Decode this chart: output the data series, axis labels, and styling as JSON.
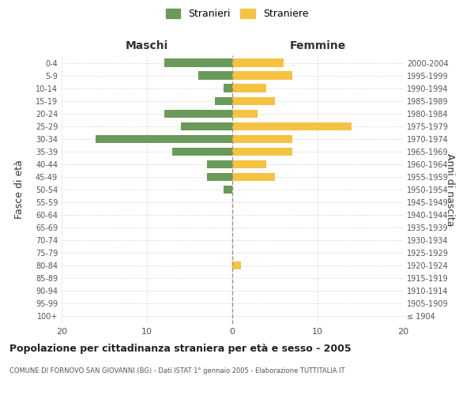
{
  "age_groups": [
    "100+",
    "95-99",
    "90-94",
    "85-89",
    "80-84",
    "75-79",
    "70-74",
    "65-69",
    "60-64",
    "55-59",
    "50-54",
    "45-49",
    "40-44",
    "35-39",
    "30-34",
    "25-29",
    "20-24",
    "15-19",
    "10-14",
    "5-9",
    "0-4"
  ],
  "birth_years": [
    "≤ 1904",
    "1905-1909",
    "1910-1914",
    "1915-1919",
    "1920-1924",
    "1925-1929",
    "1930-1934",
    "1935-1939",
    "1940-1944",
    "1945-1949",
    "1950-1954",
    "1955-1959",
    "1960-1964",
    "1965-1969",
    "1970-1974",
    "1975-1979",
    "1980-1984",
    "1985-1989",
    "1990-1994",
    "1995-1999",
    "2000-2004"
  ],
  "males": [
    0,
    0,
    0,
    0,
    0,
    0,
    0,
    0,
    0,
    0,
    1,
    3,
    3,
    7,
    16,
    6,
    8,
    2,
    1,
    4,
    8
  ],
  "females": [
    0,
    0,
    0,
    0,
    1,
    0,
    0,
    0,
    0,
    0,
    0,
    5,
    4,
    7,
    7,
    14,
    3,
    5,
    4,
    7,
    6
  ],
  "male_color": "#6a9a5a",
  "female_color": "#f5c242",
  "title": "Popolazione per cittadinanza straniera per età e sesso - 2005",
  "subtitle": "COMUNE DI FORNOVO SAN GIOVANNI (BG) - Dati ISTAT 1° gennaio 2005 - Elaborazione TUTTITALIA.IT",
  "ylabel_left": "Fasce di età",
  "ylabel_right": "Anni di nascita",
  "xlabel_maschi": "Maschi",
  "xlabel_femmine": "Femmine",
  "legend_stranieri": "Stranieri",
  "legend_straniere": "Straniere",
  "xlim": 20,
  "background_color": "#ffffff",
  "grid_color": "#cccccc",
  "dashed_line_color": "#999977"
}
